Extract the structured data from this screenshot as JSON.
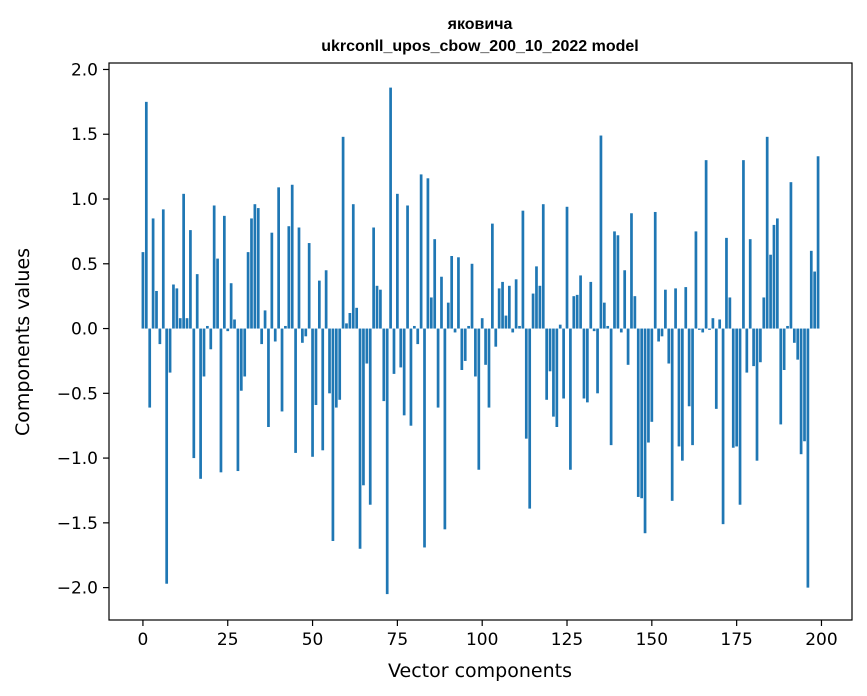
{
  "chart_data": {
    "type": "bar",
    "title": "яковича",
    "subtitle": "ukrconll_upos_cbow_200_10_2022 model",
    "xlabel": "Vector components",
    "ylabel": "Components values",
    "xlim": [
      -10,
      209
    ],
    "ylim": [
      -2.25,
      2.05
    ],
    "xticks": [
      0,
      25,
      50,
      75,
      100,
      125,
      150,
      175,
      200
    ],
    "yticks": [
      -2.0,
      -1.5,
      -1.0,
      -0.5,
      0.0,
      0.5,
      1.0,
      1.5,
      2.0
    ],
    "ytick_labels": [
      "−2.0",
      "−1.5",
      "−1.0",
      "−0.5",
      "0.0",
      "0.5",
      "1.0",
      "1.5",
      "2.0"
    ],
    "grid": false,
    "color": "#1f77b4",
    "x": [
      0,
      1,
      2,
      3,
      4,
      5,
      6,
      7,
      8,
      9,
      10,
      11,
      12,
      13,
      14,
      15,
      16,
      17,
      18,
      19,
      20,
      21,
      22,
      23,
      24,
      25,
      26,
      27,
      28,
      29,
      30,
      31,
      32,
      33,
      34,
      35,
      36,
      37,
      38,
      39,
      40,
      41,
      42,
      43,
      44,
      45,
      46,
      47,
      48,
      49,
      50,
      51,
      52,
      53,
      54,
      55,
      56,
      57,
      58,
      59,
      60,
      61,
      62,
      63,
      64,
      65,
      66,
      67,
      68,
      69,
      70,
      71,
      72,
      73,
      74,
      75,
      76,
      77,
      78,
      79,
      80,
      81,
      82,
      83,
      84,
      85,
      86,
      87,
      88,
      89,
      90,
      91,
      92,
      93,
      94,
      95,
      96,
      97,
      98,
      99,
      100,
      101,
      102,
      103,
      104,
      105,
      106,
      107,
      108,
      109,
      110,
      111,
      112,
      113,
      114,
      115,
      116,
      117,
      118,
      119,
      120,
      121,
      122,
      123,
      124,
      125,
      126,
      127,
      128,
      129,
      130,
      131,
      132,
      133,
      134,
      135,
      136,
      137,
      138,
      139,
      140,
      141,
      142,
      143,
      144,
      145,
      146,
      147,
      148,
      149,
      150,
      151,
      152,
      153,
      154,
      155,
      156,
      157,
      158,
      159,
      160,
      161,
      162,
      163,
      164,
      165,
      166,
      167,
      168,
      169,
      170,
      171,
      172,
      173,
      174,
      175,
      176,
      177,
      178,
      179,
      180,
      181,
      182,
      183,
      184,
      185,
      186,
      187,
      188,
      189,
      190,
      191,
      192,
      193,
      194,
      195,
      196,
      197,
      198,
      199
    ],
    "values": [
      0.59,
      1.75,
      -0.61,
      0.85,
      0.29,
      -0.12,
      0.92,
      -1.97,
      -0.34,
      0.34,
      0.31,
      0.08,
      1.04,
      0.08,
      0.76,
      -1.0,
      0.42,
      -1.16,
      -0.37,
      0.02,
      -0.16,
      0.95,
      0.54,
      -1.11,
      0.87,
      -0.02,
      0.35,
      0.07,
      -1.1,
      -0.48,
      -0.37,
      0.59,
      0.85,
      0.96,
      0.93,
      -0.12,
      0.14,
      -0.76,
      0.74,
      -0.1,
      1.09,
      -0.64,
      0.02,
      0.79,
      1.11,
      -0.96,
      0.78,
      -0.11,
      -0.06,
      0.66,
      -0.99,
      -0.59,
      0.37,
      -0.94,
      0.45,
      -0.5,
      -1.64,
      -0.61,
      -0.55,
      1.48,
      0.04,
      0.12,
      0.96,
      0.16,
      -1.7,
      -1.21,
      -0.27,
      -1.36,
      0.78,
      0.33,
      0.3,
      -0.56,
      -2.05,
      1.86,
      -0.35,
      1.04,
      -0.3,
      -0.67,
      0.95,
      -0.75,
      0.02,
      -0.12,
      1.19,
      -1.69,
      1.16,
      0.24,
      0.69,
      -0.61,
      0.4,
      -1.55,
      0.2,
      0.56,
      -0.03,
      0.55,
      -0.32,
      -0.25,
      0.02,
      0.5,
      -0.37,
      -1.09,
      0.08,
      -0.28,
      -0.61,
      0.81,
      -0.14,
      0.31,
      0.36,
      0.1,
      0.33,
      -0.03,
      0.38,
      0.02,
      0.91,
      -0.85,
      -1.39,
      0.27,
      0.48,
      0.33,
      0.96,
      -0.55,
      -0.33,
      -0.68,
      -0.76,
      0.03,
      -0.54,
      0.94,
      -1.09,
      0.25,
      0.26,
      0.41,
      -0.54,
      -0.57,
      0.36,
      -0.02,
      -0.5,
      1.49,
      0.2,
      0.02,
      -0.9,
      0.75,
      0.72,
      -0.03,
      0.45,
      -0.28,
      0.89,
      0.25,
      -1.3,
      -1.31,
      -1.58,
      -0.88,
      -0.72,
      0.9,
      -0.1,
      -0.06,
      0.3,
      -0.27,
      -1.33,
      0.31,
      -0.91,
      -1.02,
      0.32,
      -0.6,
      -0.9,
      0.75,
      -0.01,
      -0.03,
      1.3,
      -0.01,
      0.08,
      -0.62,
      0.07,
      -1.51,
      0.7,
      0.24,
      -0.92,
      -0.91,
      -1.36,
      1.3,
      -0.34,
      0.69,
      -0.29,
      -1.02,
      -0.26,
      0.24,
      1.48,
      0.57,
      0.8,
      0.85,
      -0.74,
      -0.32,
      0.02,
      1.13,
      -0.11,
      -0.24,
      -0.97,
      -0.87,
      -2.0,
      0.6,
      0.44,
      1.33
    ]
  }
}
